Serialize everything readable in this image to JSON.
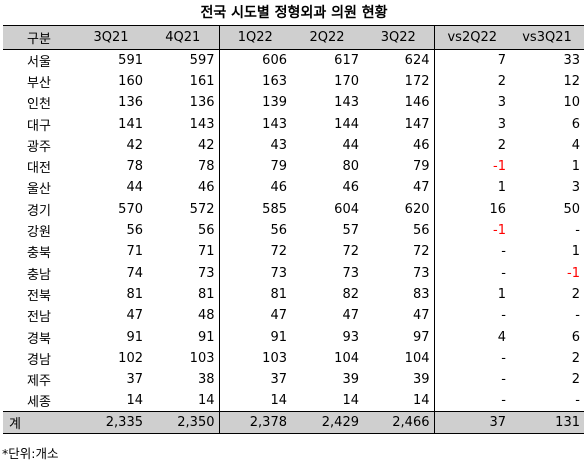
{
  "title": "전국 시도별 정형외과 의원 현황",
  "columns": [
    "구분",
    "3Q21",
    "4Q21",
    "1Q22",
    "2Q22",
    "3Q22",
    "vs2Q22",
    "vs3Q21"
  ],
  "rows": [
    [
      "서울",
      "591",
      "597",
      "606",
      "617",
      "624",
      "7",
      "33"
    ],
    [
      "부산",
      "160",
      "161",
      "163",
      "170",
      "172",
      "2",
      "12"
    ],
    [
      "인천",
      "136",
      "136",
      "139",
      "143",
      "146",
      "3",
      "10"
    ],
    [
      "대구",
      "141",
      "143",
      "143",
      "144",
      "147",
      "3",
      "6"
    ],
    [
      "광주",
      "42",
      "42",
      "43",
      "44",
      "46",
      "2",
      "4"
    ],
    [
      "대전",
      "78",
      "78",
      "79",
      "80",
      "79",
      "-1",
      "1"
    ],
    [
      "울산",
      "44",
      "46",
      "46",
      "46",
      "47",
      "1",
      "3"
    ],
    [
      "경기",
      "570",
      "572",
      "585",
      "604",
      "620",
      "16",
      "50"
    ],
    [
      "강원",
      "56",
      "56",
      "56",
      "57",
      "56",
      "-1",
      "-"
    ],
    [
      "충북",
      "71",
      "71",
      "72",
      "72",
      "72",
      "-",
      "1"
    ],
    [
      "충남",
      "74",
      "73",
      "73",
      "73",
      "73",
      "-",
      "-1"
    ],
    [
      "전북",
      "81",
      "81",
      "81",
      "82",
      "83",
      "1",
      "2"
    ],
    [
      "전남",
      "47",
      "48",
      "47",
      "47",
      "47",
      "-",
      "-"
    ],
    [
      "경북",
      "91",
      "91",
      "91",
      "93",
      "97",
      "4",
      "6"
    ],
    [
      "경남",
      "102",
      "103",
      "103",
      "104",
      "104",
      "-",
      "2"
    ],
    [
      "제주",
      "37",
      "38",
      "37",
      "39",
      "39",
      "-",
      "2"
    ],
    [
      "세종",
      "14",
      "14",
      "14",
      "14",
      "14",
      "-",
      "-"
    ]
  ],
  "total": [
    "계",
    "2,335",
    "2,350",
    "2,378",
    "2,429",
    "2,466",
    "37",
    "131"
  ],
  "note": "*단위:개소",
  "colors": {
    "header_bg": "#cfcfcf",
    "negative": "#ff0000"
  }
}
